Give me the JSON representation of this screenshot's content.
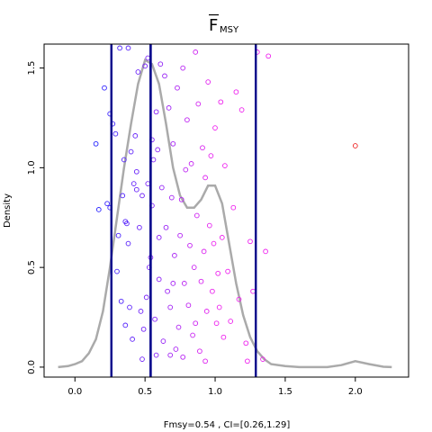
{
  "chart_data": {
    "type": "scatter",
    "title_main": "F",
    "title_sub": "MSY",
    "ylabel": "Density",
    "xlabel": "Fmsy=0.54 , CI=[0.26,1.29]",
    "xlim": [
      -0.22,
      2.38
    ],
    "ylim": [
      -0.05,
      1.62
    ],
    "x_ticks": [
      {
        "value": 0.0,
        "label": "0.0"
      },
      {
        "value": 0.5,
        "label": "0.5"
      },
      {
        "value": 1.0,
        "label": "1.0"
      },
      {
        "value": 1.5,
        "label": "1.5"
      },
      {
        "value": 2.0,
        "label": "2.0"
      }
    ],
    "y_ticks": [
      {
        "value": 0.0,
        "label": "0.0"
      },
      {
        "value": 0.5,
        "label": "0.5"
      },
      {
        "value": 1.0,
        "label": "1.0"
      },
      {
        "value": 1.5,
        "label": "1.5"
      }
    ],
    "vlines": [
      0.26,
      0.54,
      0.54,
      1.29
    ],
    "density_curve": [
      [
        -0.12,
        0.0
      ],
      [
        -0.05,
        0.005
      ],
      [
        0.0,
        0.015
      ],
      [
        0.05,
        0.03
      ],
      [
        0.1,
        0.07
      ],
      [
        0.15,
        0.14
      ],
      [
        0.2,
        0.28
      ],
      [
        0.25,
        0.5
      ],
      [
        0.3,
        0.75
      ],
      [
        0.35,
        1.0
      ],
      [
        0.4,
        1.22
      ],
      [
        0.45,
        1.42
      ],
      [
        0.5,
        1.54
      ],
      [
        0.55,
        1.52
      ],
      [
        0.6,
        1.42
      ],
      [
        0.65,
        1.22
      ],
      [
        0.7,
        1.0
      ],
      [
        0.75,
        0.86
      ],
      [
        0.8,
        0.8
      ],
      [
        0.85,
        0.8
      ],
      [
        0.9,
        0.84
      ],
      [
        0.95,
        0.91
      ],
      [
        1.0,
        0.91
      ],
      [
        1.05,
        0.82
      ],
      [
        1.1,
        0.62
      ],
      [
        1.15,
        0.42
      ],
      [
        1.2,
        0.26
      ],
      [
        1.25,
        0.15
      ],
      [
        1.3,
        0.08
      ],
      [
        1.35,
        0.04
      ],
      [
        1.4,
        0.015
      ],
      [
        1.5,
        0.005
      ],
      [
        1.6,
        0.0
      ],
      [
        1.8,
        0.0
      ],
      [
        1.9,
        0.01
      ],
      [
        2.0,
        0.03
      ],
      [
        2.1,
        0.015
      ],
      [
        2.2,
        0.002
      ],
      [
        2.26,
        0.0
      ]
    ],
    "points": [
      [
        0.15,
        1.12
      ],
      [
        0.17,
        0.79
      ],
      [
        0.21,
        1.4
      ],
      [
        0.23,
        0.82
      ],
      [
        0.25,
        1.27
      ],
      [
        0.25,
        0.8
      ],
      [
        0.27,
        1.22
      ],
      [
        0.29,
        1.17
      ],
      [
        0.3,
        0.48
      ],
      [
        0.31,
        0.66
      ],
      [
        0.32,
        1.6
      ],
      [
        0.33,
        0.33
      ],
      [
        0.34,
        0.86
      ],
      [
        0.35,
        1.04
      ],
      [
        0.36,
        0.73
      ],
      [
        0.37,
        0.72
      ],
      [
        0.38,
        0.62
      ],
      [
        0.38,
        1.6
      ],
      [
        0.39,
        0.3
      ],
      [
        0.4,
        1.08
      ],
      [
        0.41,
        0.14
      ],
      [
        0.42,
        0.92
      ],
      [
        0.43,
        1.16
      ],
      [
        0.44,
        0.89
      ],
      [
        0.45,
        1.48
      ],
      [
        0.46,
        0.7
      ],
      [
        0.47,
        0.28
      ],
      [
        0.48,
        0.86
      ],
      [
        0.49,
        0.19
      ],
      [
        0.5,
        1.51
      ],
      [
        0.51,
        0.35
      ],
      [
        0.52,
        0.92
      ],
      [
        0.53,
        0.5
      ],
      [
        0.54,
        0.55
      ],
      [
        0.55,
        0.81
      ],
      [
        0.55,
        1.14
      ],
      [
        0.56,
        1.04
      ],
      [
        0.57,
        0.24
      ],
      [
        0.58,
        1.28
      ],
      [
        0.59,
        1.09
      ],
      [
        0.6,
        0.44
      ],
      [
        0.61,
        1.52
      ],
      [
        0.62,
        0.9
      ],
      [
        0.63,
        0.13
      ],
      [
        0.64,
        1.46
      ],
      [
        0.65,
        0.7
      ],
      [
        0.66,
        0.38
      ],
      [
        0.67,
        1.3
      ],
      [
        0.68,
        0.3
      ],
      [
        0.69,
        0.85
      ],
      [
        0.7,
        1.12
      ],
      [
        0.71,
        0.56
      ],
      [
        0.72,
        0.09
      ],
      [
        0.73,
        1.4
      ],
      [
        0.74,
        0.2
      ],
      [
        0.75,
        0.66
      ],
      [
        0.76,
        0.84
      ],
      [
        0.77,
        1.5
      ],
      [
        0.78,
        0.42
      ],
      [
        0.79,
        0.99
      ],
      [
        0.8,
        1.24
      ],
      [
        0.81,
        0.31
      ],
      [
        0.82,
        0.61
      ],
      [
        0.83,
        1.02
      ],
      [
        0.84,
        0.16
      ],
      [
        0.85,
        0.5
      ],
      [
        0.86,
        1.58
      ],
      [
        0.87,
        0.76
      ],
      [
        0.88,
        1.32
      ],
      [
        0.89,
        0.08
      ],
      [
        0.9,
        0.43
      ],
      [
        0.91,
        1.1
      ],
      [
        0.92,
        0.58
      ],
      [
        0.93,
        0.95
      ],
      [
        0.94,
        0.28
      ],
      [
        0.95,
        1.43
      ],
      [
        0.96,
        0.71
      ],
      [
        0.97,
        1.06
      ],
      [
        0.98,
        0.38
      ],
      [
        0.99,
        0.62
      ],
      [
        1.0,
        1.2
      ],
      [
        1.01,
        0.22
      ],
      [
        1.02,
        0.47
      ],
      [
        1.03,
        0.3
      ],
      [
        1.04,
        1.33
      ],
      [
        1.05,
        0.65
      ],
      [
        1.06,
        0.15
      ],
      [
        1.07,
        1.01
      ],
      [
        1.09,
        0.48
      ],
      [
        1.11,
        0.23
      ],
      [
        1.13,
        0.8
      ],
      [
        1.15,
        1.38
      ],
      [
        1.17,
        0.34
      ],
      [
        1.19,
        1.29
      ],
      [
        1.22,
        0.12
      ],
      [
        1.25,
        0.63
      ],
      [
        1.27,
        0.38
      ],
      [
        1.3,
        1.58
      ],
      [
        1.34,
        0.04
      ],
      [
        1.36,
        0.58
      ],
      [
        1.38,
        1.56
      ],
      [
        2.0,
        1.11
      ],
      [
        0.48,
        0.04
      ],
      [
        0.58,
        0.06
      ],
      [
        0.68,
        0.06
      ],
      [
        0.77,
        0.05
      ],
      [
        0.93,
        0.03
      ],
      [
        1.23,
        0.03
      ],
      [
        0.52,
        1.55
      ],
      [
        0.44,
        0.98
      ],
      [
        0.36,
        0.21
      ],
      [
        0.6,
        0.65
      ],
      [
        0.7,
        0.42
      ],
      [
        0.86,
        0.22
      ]
    ],
    "point_colors": {
      "start": "#2222ff",
      "end": "#ee22ee",
      "outlier": "#ee2222"
    }
  }
}
